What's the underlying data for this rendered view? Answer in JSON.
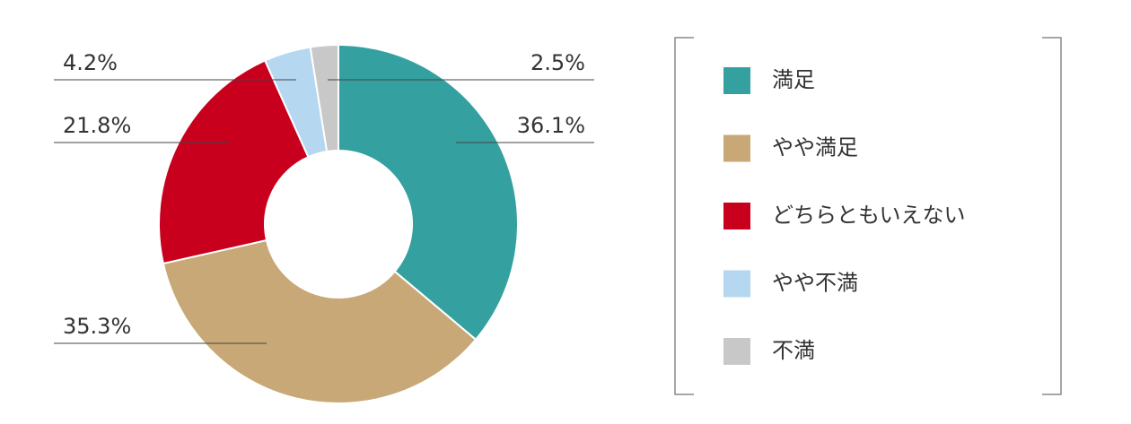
{
  "chart_data": {
    "type": "donut",
    "categories": [
      "満足",
      "やや満足",
      "どちらともいえない",
      "やや不満",
      "不満"
    ],
    "values": [
      36.1,
      35.3,
      21.8,
      4.2,
      2.5
    ],
    "value_labels": [
      "36.1%",
      "35.3%",
      "21.8%",
      "4.2%",
      "2.5%"
    ],
    "colors": [
      "#35a0a0",
      "#c8a876",
      "#c8001e",
      "#b5d7f0",
      "#c8c8c8"
    ]
  }
}
